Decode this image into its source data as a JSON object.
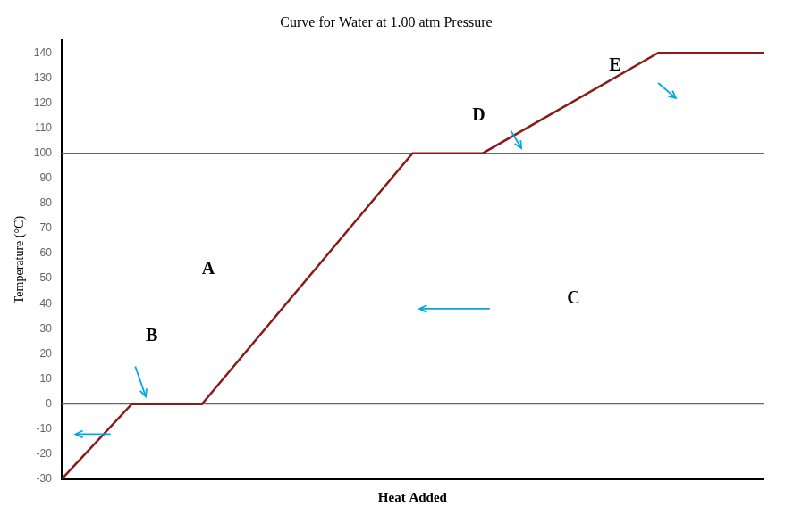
{
  "chart_data": {
    "type": "line",
    "title": "Curve for Water at 1.00 atm Pressure",
    "xlabel": "Heat Added",
    "ylabel": "Temperature (°C)",
    "x": [
      0,
      1,
      2,
      5,
      6,
      8.5,
      10
    ],
    "values": [
      -30,
      0,
      0,
      100,
      100,
      140,
      140
    ],
    "color": "#8B1A1A",
    "xlim": [
      0,
      10
    ],
    "ylim": [
      -30,
      145
    ],
    "yticks": [
      -30,
      -20,
      -10,
      0,
      10,
      20,
      30,
      40,
      50,
      60,
      70,
      80,
      90,
      100,
      110,
      120,
      130,
      140
    ],
    "tick_labels": "y",
    "grid": false,
    "hlines": [
      0,
      100
    ],
    "annotations": [
      {
        "text": "A",
        "x": 2.0,
        "y": 52
      },
      {
        "text": "B",
        "x": 1.2,
        "y": 25
      },
      {
        "text": "C",
        "x": 7.2,
        "y": 40
      },
      {
        "text": "D",
        "x": 5.85,
        "y": 113
      },
      {
        "text": "E",
        "x": 7.8,
        "y": 133
      }
    ],
    "arrows": [
      {
        "x_start": 1.05,
        "y_start": 15,
        "x_end": 1.2,
        "y_end": 3,
        "color": "#00AADD"
      },
      {
        "x_start": 0.7,
        "y_start": -12,
        "x_end": 0.2,
        "y_end": -12,
        "color": "#00AADD"
      },
      {
        "x_start": 6.1,
        "y_start": 38,
        "x_end": 5.1,
        "y_end": 38,
        "color": "#00AADD"
      },
      {
        "x_start": 6.4,
        "y_start": 109,
        "x_end": 6.55,
        "y_end": 102,
        "color": "#00AADD"
      },
      {
        "x_start": 8.5,
        "y_start": 128,
        "x_end": 8.75,
        "y_end": 122,
        "color": "#00AADD"
      }
    ]
  }
}
